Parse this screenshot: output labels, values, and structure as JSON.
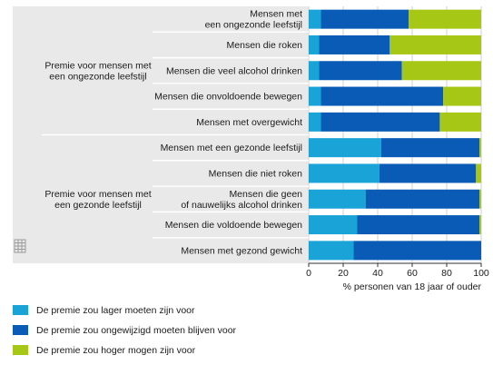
{
  "chart_data": {
    "type": "bar",
    "orientation": "horizontal",
    "stacked": true,
    "xlabel": "% personen van 18 jaar of ouder",
    "xlim": [
      0,
      100
    ],
    "xticks": [
      "0",
      "20",
      "40",
      "60",
      "80",
      "100"
    ],
    "grid": "vertical",
    "groups": [
      {
        "label": "Premie voor mensen met een ongezonde leefstijl",
        "lines": [
          "Premie voor mensen met",
          "een ongezonde leefstijl"
        ]
      },
      {
        "label": "Premie voor mensen met een gezonde leefstijl",
        "lines": [
          "Premie voor mensen met",
          "een gezonde leefstijl"
        ]
      }
    ],
    "categories": [
      {
        "group": 0,
        "lines": [
          "Mensen met",
          "een ongezonde leefstijl"
        ]
      },
      {
        "group": 0,
        "lines": [
          "Mensen die roken"
        ]
      },
      {
        "group": 0,
        "lines": [
          "Mensen die veel alcohol drinken"
        ]
      },
      {
        "group": 0,
        "lines": [
          "Mensen die onvoldoende bewegen"
        ]
      },
      {
        "group": 0,
        "lines": [
          "Mensen met overgewicht"
        ]
      },
      {
        "group": 1,
        "lines": [
          "Mensen met een gezonde leefstijl"
        ]
      },
      {
        "group": 1,
        "lines": [
          "Mensen die niet roken"
        ]
      },
      {
        "group": 1,
        "lines": [
          "Mensen die geen",
          "of nauwelijks alcohol drinken"
        ]
      },
      {
        "group": 1,
        "lines": [
          "Mensen die voldoende bewegen"
        ]
      },
      {
        "group": 1,
        "lines": [
          "Mensen met gezond gewicht"
        ]
      }
    ],
    "series": [
      {
        "name": "De premie zou lager moeten zijn voor",
        "color": "#1aa3d6",
        "values": [
          7,
          6,
          6,
          7,
          7,
          42,
          41,
          33,
          28,
          26
        ]
      },
      {
        "name": "De premie zou ongewijzigd moeten blijven voor",
        "color": "#0a5bb5",
        "values": [
          51,
          41,
          48,
          71,
          69,
          57,
          56,
          66,
          71,
          74
        ]
      },
      {
        "name": "De premie zou hoger mogen zijn voor",
        "color": "#a7c716",
        "values": [
          42,
          53,
          46,
          22,
          24,
          1,
          3,
          1,
          1,
          0
        ]
      }
    ]
  }
}
